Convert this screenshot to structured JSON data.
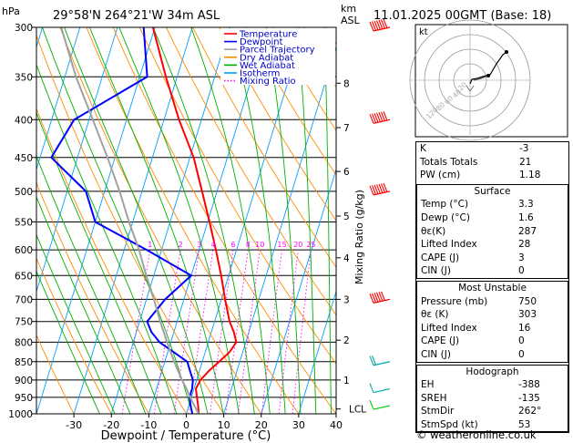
{
  "header": {
    "pressure_unit": "hPa",
    "location": "29°58'N  264°21'W  34m  ASL",
    "km_label_1": "km",
    "km_label_2": "ASL",
    "datetime": "11.01.2025  00GMT  (Base: 18)"
  },
  "chart_data": {
    "type": "skew-t",
    "xlabel": "Dewpoint / Temperature (°C)",
    "x_ticks": [
      -30,
      -20,
      -10,
      0,
      10,
      20,
      30,
      40
    ],
    "pressure_levels": [
      300,
      350,
      400,
      450,
      500,
      550,
      600,
      650,
      700,
      750,
      800,
      850,
      900,
      950,
      1000
    ],
    "xlim": [
      -40,
      40
    ],
    "ylim_hpa": [
      1000,
      300
    ],
    "y_scale": "log",
    "km_ticks": [
      {
        "km": "1",
        "p": 900
      },
      {
        "km": "2",
        "p": 795
      },
      {
        "km": "3",
        "p": 700
      },
      {
        "km": "4",
        "p": 615
      },
      {
        "km": "5",
        "p": 540
      },
      {
        "km": "6",
        "p": 470
      },
      {
        "km": "7",
        "p": 410
      },
      {
        "km": "8",
        "p": 357
      }
    ],
    "lcl": {
      "label": "LCL",
      "p": 985
    },
    "mixing_ratio_label": "Mixing Ratio (g/kg)",
    "mixing_ratio_values": [
      "1",
      "2",
      "3",
      "4",
      "6",
      "8",
      "10",
      "15",
      "20",
      "25"
    ],
    "legend": [
      {
        "name": "Temperature",
        "color": "#ff0000",
        "style": "solid"
      },
      {
        "name": "Dewpoint",
        "color": "#0000ff",
        "style": "solid"
      },
      {
        "name": "Parcel Trajectory",
        "color": "#a0a0a0",
        "style": "solid"
      },
      {
        "name": "Dry Adiabat",
        "color": "#ff8c00",
        "style": "solid"
      },
      {
        "name": "Wet Adiabat",
        "color": "#00b000",
        "style": "solid"
      },
      {
        "name": "Isotherm",
        "color": "#00a0ff",
        "style": "solid"
      },
      {
        "name": "Mixing Ratio",
        "color": "#ff00ff",
        "style": "dotted"
      }
    ],
    "series": [
      {
        "name": "Temperature",
        "color": "#ff0000",
        "points": [
          [
            1000,
            3.3
          ],
          [
            975,
            2.5
          ],
          [
            950,
            1.5
          ],
          [
            925,
            0.5
          ],
          [
            900,
            1.0
          ],
          [
            875,
            2.5
          ],
          [
            850,
            4.5
          ],
          [
            825,
            6.5
          ],
          [
            800,
            7.5
          ],
          [
            775,
            6.0
          ],
          [
            750,
            4.0
          ],
          [
            700,
            1.0
          ],
          [
            650,
            -2.0
          ],
          [
            600,
            -5.5
          ],
          [
            550,
            -9.5
          ],
          [
            500,
            -14.0
          ],
          [
            450,
            -19.0
          ],
          [
            400,
            -26.0
          ],
          [
            350,
            -33.0
          ],
          [
            300,
            -40.5
          ]
        ]
      },
      {
        "name": "Dewpoint",
        "color": "#0000ff",
        "points": [
          [
            1000,
            1.6
          ],
          [
            975,
            0.5
          ],
          [
            950,
            -0.5
          ],
          [
            925,
            -0.5
          ],
          [
            900,
            -1.0
          ],
          [
            875,
            -2.5
          ],
          [
            850,
            -4.0
          ],
          [
            800,
            -13.0
          ],
          [
            775,
            -16.0
          ],
          [
            750,
            -18.0
          ],
          [
            700,
            -15.0
          ],
          [
            650,
            -10.0
          ],
          [
            600,
            -24.0
          ],
          [
            550,
            -40.0
          ],
          [
            500,
            -45.0
          ],
          [
            450,
            -57.0
          ],
          [
            400,
            -54.0
          ],
          [
            350,
            -38.0
          ],
          [
            300,
            -43.0
          ]
        ]
      },
      {
        "name": "Parcel Trajectory",
        "color": "#a0a0a0",
        "points": [
          [
            1000,
            3.3
          ],
          [
            975,
            1.5
          ],
          [
            950,
            -0.3
          ],
          [
            925,
            -2.0
          ],
          [
            900,
            -3.9
          ],
          [
            850,
            -7.5
          ],
          [
            800,
            -11.0
          ],
          [
            750,
            -14.5
          ],
          [
            700,
            -18.0
          ],
          [
            650,
            -22.0
          ],
          [
            600,
            -26.0
          ],
          [
            550,
            -31.0
          ],
          [
            500,
            -36.0
          ],
          [
            450,
            -42.0
          ],
          [
            400,
            -49.0
          ],
          [
            350,
            -57.0
          ],
          [
            300,
            -65.0
          ]
        ]
      }
    ],
    "wind_barbs": [
      {
        "p": 300,
        "speed": 90,
        "color": "#ff0000"
      },
      {
        "p": 400,
        "speed": 80,
        "color": "#ff0000"
      },
      {
        "p": 500,
        "speed": 65,
        "color": "#ff0000"
      },
      {
        "p": 700,
        "speed": 55,
        "color": "#ff0000"
      },
      {
        "p": 850,
        "speed": 15,
        "color": "#00aaaa"
      },
      {
        "p": 925,
        "speed": 10,
        "color": "#00aaaa"
      },
      {
        "p": 975,
        "speed": 10,
        "color": "#00cc00"
      }
    ]
  },
  "hodograph": {
    "unit_label": "kt",
    "ring_labels": [
      "20",
      "40",
      "60",
      "80",
      "120"
    ]
  },
  "indices": {
    "top": [
      {
        "label": "K",
        "value": "-3"
      },
      {
        "label": "Totals Totals",
        "value": "21"
      },
      {
        "label": "PW (cm)",
        "value": "1.18"
      }
    ],
    "surface": {
      "title": "Surface",
      "rows": [
        {
          "label": "Temp (°C)",
          "value": "3.3"
        },
        {
          "label": "Dewp (°C)",
          "value": "1.6"
        },
        {
          "label": "θε(K)",
          "value": "287"
        },
        {
          "label": "Lifted Index",
          "value": "28"
        },
        {
          "label": "CAPE (J)",
          "value": "3"
        },
        {
          "label": "CIN (J)",
          "value": "0"
        }
      ]
    },
    "most_unstable": {
      "title": "Most Unstable",
      "rows": [
        {
          "label": "Pressure (mb)",
          "value": "750"
        },
        {
          "label": "θε (K)",
          "value": "303"
        },
        {
          "label": "Lifted Index",
          "value": "16"
        },
        {
          "label": "CAPE (J)",
          "value": "0"
        },
        {
          "label": "CIN (J)",
          "value": "0"
        }
      ]
    },
    "hodograph_params": {
      "title": "Hodograph",
      "rows": [
        {
          "label": "EH",
          "value": "-388"
        },
        {
          "label": "SREH",
          "value": "-135"
        },
        {
          "label": "StmDir",
          "value": "262°"
        },
        {
          "label": "StmSpd (kt)",
          "value": "53"
        }
      ]
    }
  },
  "footer": "© weatheronline.co.uk"
}
